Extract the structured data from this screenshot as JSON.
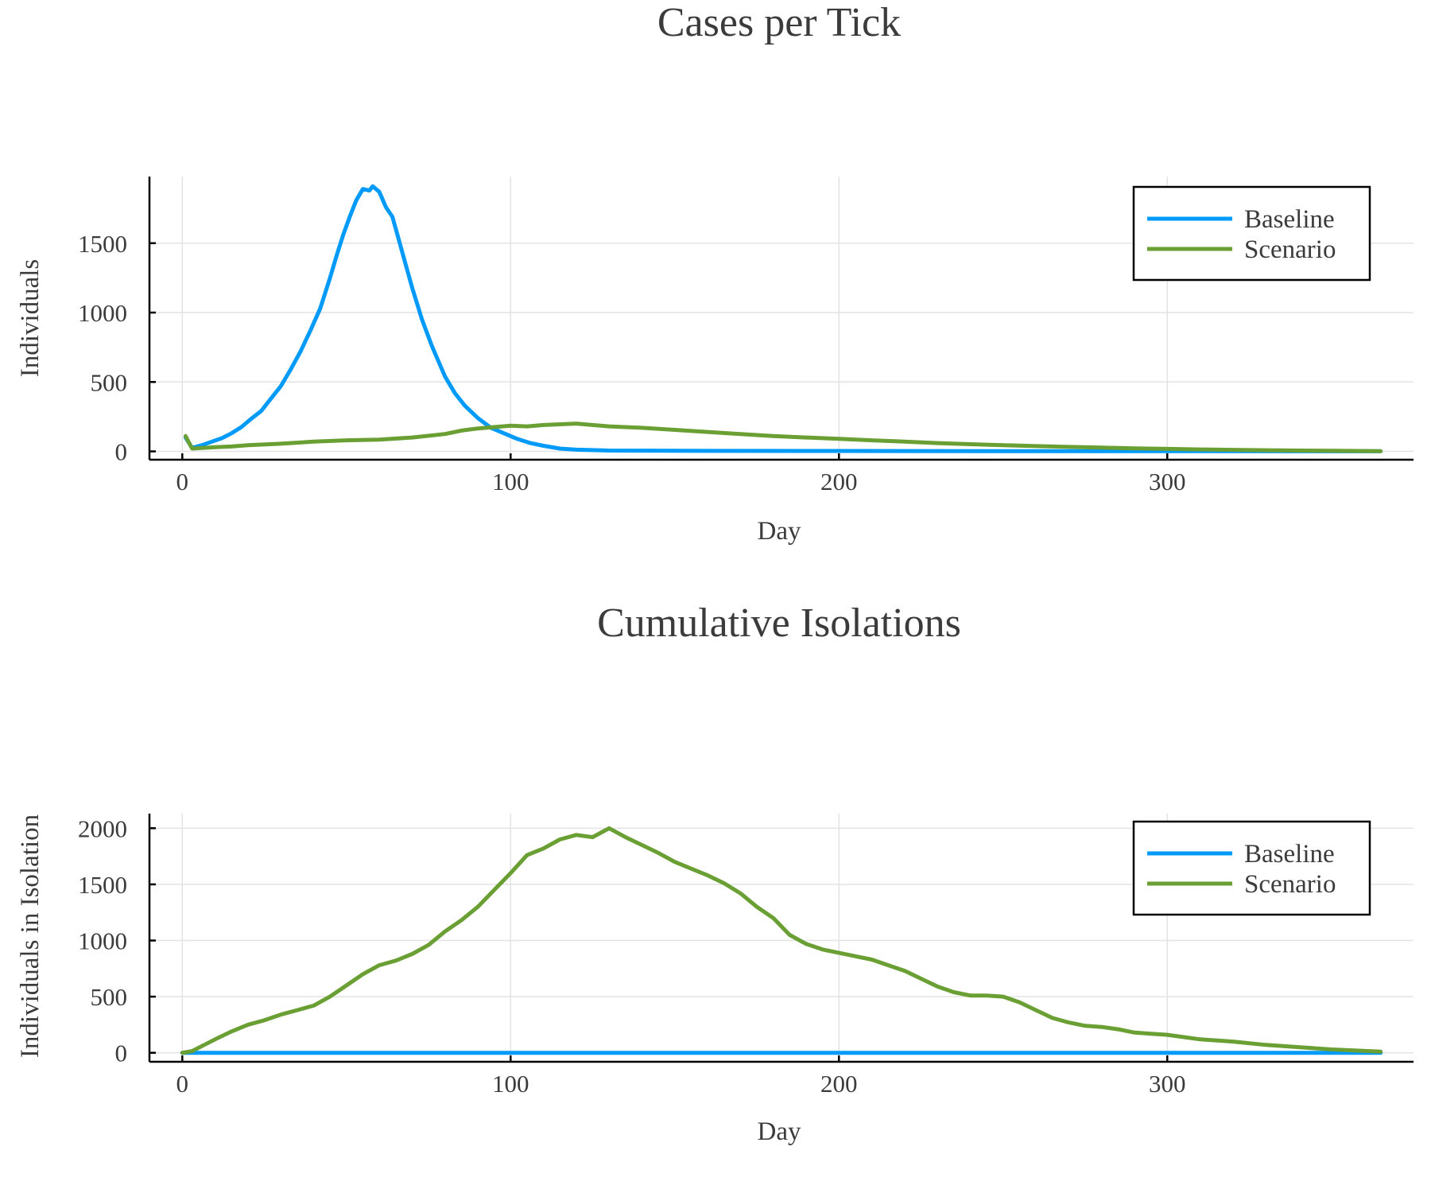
{
  "chart_data": [
    {
      "type": "line",
      "title": "Cases per Tick",
      "xlabel": "Day",
      "ylabel": "Individuals",
      "xlim": [
        -10,
        375
      ],
      "ylim": [
        -60,
        1980
      ],
      "xticks": [
        0,
        100,
        200,
        300
      ],
      "yticks": [
        0,
        500,
        1000,
        1500
      ],
      "grid": true,
      "legend": "top-right",
      "series": [
        {
          "name": "Baseline",
          "color": "#009af9",
          "x": [
            1,
            3,
            6,
            9,
            12,
            15,
            18,
            21,
            24,
            27,
            30,
            33,
            36,
            39,
            42,
            45,
            47,
            49,
            51,
            53,
            55,
            57,
            58,
            60,
            62,
            64,
            66,
            68,
            70,
            73,
            76,
            80,
            83,
            86,
            90,
            94,
            98,
            102,
            106,
            110,
            115,
            120,
            130,
            150,
            200,
            250,
            300,
            365
          ],
          "y": [
            100,
            25,
            45,
            70,
            95,
            130,
            175,
            235,
            290,
            380,
            470,
            590,
            720,
            870,
            1030,
            1250,
            1410,
            1560,
            1690,
            1810,
            1890,
            1880,
            1910,
            1870,
            1760,
            1690,
            1520,
            1350,
            1180,
            950,
            760,
            540,
            420,
            330,
            240,
            170,
            130,
            90,
            60,
            40,
            20,
            12,
            6,
            4,
            3,
            2,
            2,
            1
          ]
        },
        {
          "name": "Scenario",
          "color": "#6a9f34",
          "x": [
            1,
            3,
            6,
            10,
            15,
            20,
            30,
            40,
            50,
            60,
            70,
            80,
            85,
            90,
            95,
            100,
            105,
            110,
            115,
            120,
            125,
            130,
            140,
            150,
            160,
            170,
            180,
            190,
            200,
            210,
            220,
            230,
            240,
            250,
            260,
            270,
            280,
            290,
            300,
            310,
            320,
            330,
            340,
            350,
            365
          ],
          "y": [
            110,
            20,
            25,
            30,
            35,
            45,
            55,
            70,
            80,
            85,
            100,
            125,
            150,
            165,
            175,
            185,
            180,
            190,
            195,
            200,
            190,
            180,
            170,
            155,
            140,
            125,
            110,
            100,
            90,
            80,
            70,
            60,
            52,
            45,
            38,
            32,
            27,
            22,
            18,
            14,
            11,
            8,
            6,
            4,
            2
          ]
        }
      ]
    },
    {
      "type": "line",
      "title": "Cumulative Isolations",
      "xlabel": "Day",
      "ylabel": "Individuals in Isolation",
      "xlim": [
        -10,
        375
      ],
      "ylim": [
        -80,
        2130
      ],
      "xticks": [
        0,
        100,
        200,
        300
      ],
      "yticks": [
        0,
        500,
        1000,
        1500,
        2000
      ],
      "grid": true,
      "legend": "top-right",
      "series": [
        {
          "name": "Baseline",
          "color": "#009af9",
          "x": [
            0,
            365
          ],
          "y": [
            0,
            0
          ]
        },
        {
          "name": "Scenario",
          "color": "#6a9f34",
          "x": [
            0,
            3,
            6,
            10,
            15,
            20,
            25,
            30,
            35,
            40,
            45,
            50,
            55,
            60,
            65,
            70,
            75,
            80,
            85,
            90,
            95,
            100,
            105,
            110,
            115,
            120,
            125,
            130,
            135,
            140,
            145,
            150,
            155,
            160,
            165,
            170,
            175,
            180,
            185,
            190,
            195,
            200,
            205,
            210,
            215,
            220,
            225,
            230,
            235,
            240,
            245,
            250,
            255,
            260,
            265,
            270,
            275,
            280,
            285,
            290,
            295,
            300,
            310,
            320,
            330,
            340,
            350,
            365
          ],
          "y": [
            0,
            15,
            60,
            120,
            190,
            250,
            290,
            340,
            380,
            420,
            500,
            600,
            700,
            780,
            820,
            880,
            960,
            1080,
            1180,
            1300,
            1450,
            1600,
            1760,
            1820,
            1900,
            1940,
            1920,
            2000,
            1920,
            1850,
            1780,
            1700,
            1640,
            1580,
            1510,
            1420,
            1300,
            1200,
            1050,
            970,
            920,
            890,
            860,
            830,
            780,
            730,
            660,
            590,
            540,
            510,
            510,
            500,
            450,
            380,
            310,
            270,
            240,
            230,
            210,
            180,
            170,
            160,
            120,
            100,
            70,
            50,
            30,
            10
          ]
        }
      ]
    }
  ]
}
